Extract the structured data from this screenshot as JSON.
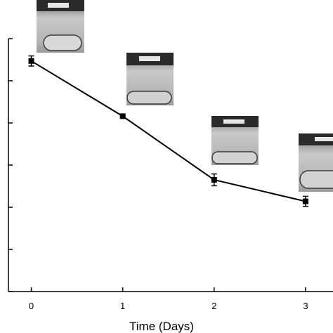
{
  "chart_data": {
    "type": "line",
    "x": [
      0,
      1,
      2,
      3
    ],
    "series": [
      {
        "values": [
          5.47,
          4.16,
          2.65,
          2.14
        ],
        "errors": [
          0.12,
          0.03,
          0.14,
          0.12
        ]
      }
    ],
    "xlabel": "Time (Days)",
    "ylabel": "",
    "x_tick_labels": [
      "0",
      "1",
      "2",
      "3"
    ],
    "xlim": [
      -0.25,
      3.3
    ],
    "ylim": [
      0,
      6
    ],
    "grid": false,
    "line_color": "#000000",
    "marker": "square",
    "inset_images": [
      "tube-photo-day0",
      "tube-photo-day1",
      "tube-photo-day2",
      "tube-photo-day3"
    ]
  }
}
